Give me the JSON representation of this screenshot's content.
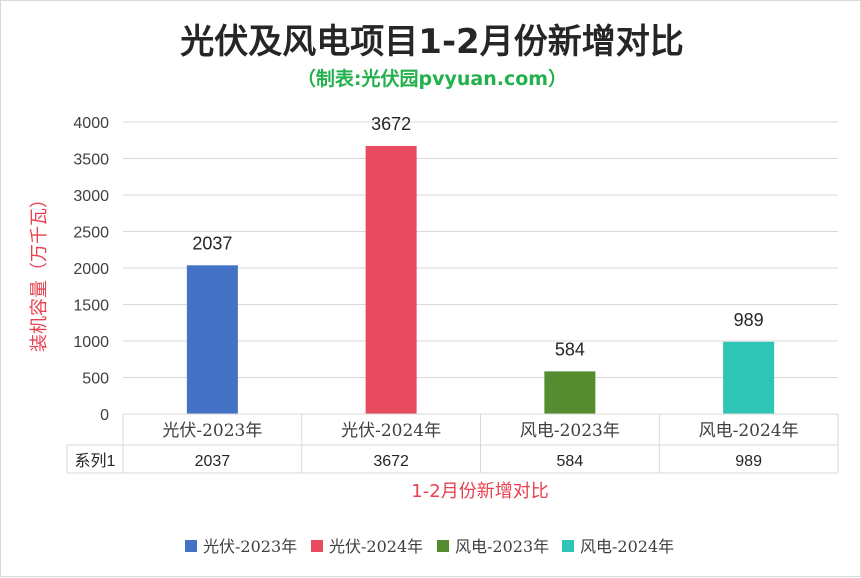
{
  "chart_data": {
    "type": "bar",
    "title": "光伏及风电项目1-2月份新增对比",
    "subtitle": "（制表:光伏园pvyuan.com）",
    "ylabel": "装机容量（万千瓦）",
    "xlabel": "1-2月份新增对比",
    "categories": [
      "光伏-2023年",
      "光伏-2024年",
      "风电-2023年",
      "风电-2024年"
    ],
    "values": [
      2037,
      3672,
      584,
      989
    ],
    "colors": [
      "#4472c4",
      "#e84a5f",
      "#548c2f",
      "#2ec4b6"
    ],
    "ylim": [
      0,
      4000
    ],
    "yticks": [
      "0",
      "500",
      "1000",
      "1500",
      "2000",
      "2500",
      "3000",
      "3500",
      "4000"
    ],
    "data_labels": [
      "2037",
      "3672",
      "584",
      "989"
    ],
    "grid": true,
    "data_table": {
      "row_label": "系列1",
      "cells": [
        "2037",
        "3672",
        "584",
        "989"
      ]
    },
    "legend": {
      "placement": "bottom",
      "entries": [
        "光伏-2023年",
        "光伏-2024年",
        "风电-2023年",
        "风电-2024年"
      ]
    }
  }
}
